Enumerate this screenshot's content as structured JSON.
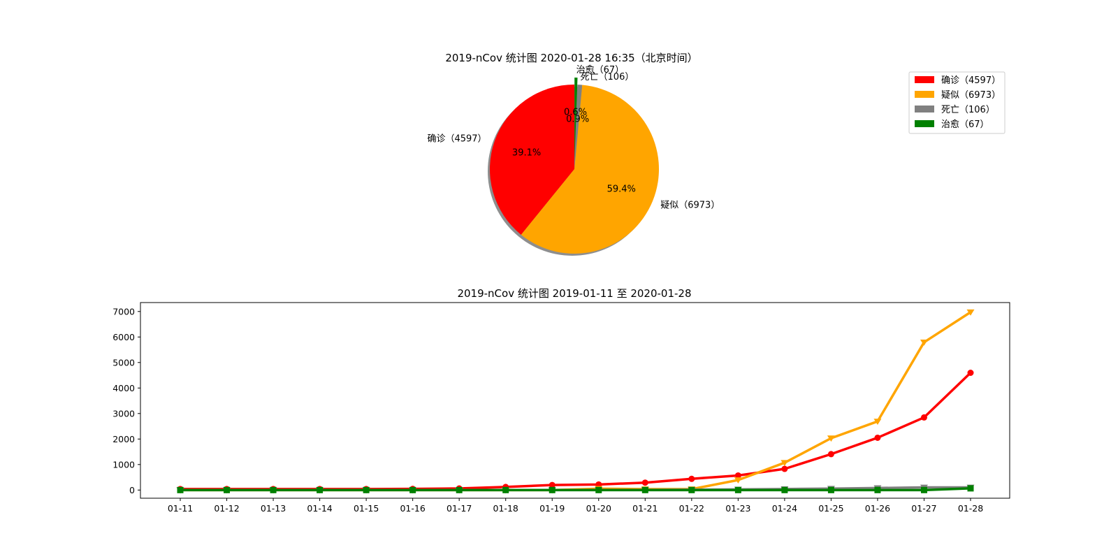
{
  "colors": {
    "confirmed": "#ff0000",
    "suspected": "#ffa500",
    "dead": "#808080",
    "cured": "#008000"
  },
  "chart_data": [
    {
      "type": "pie",
      "title": "2019-nCov 统计图 2020-01-28 16:35（北京时间）",
      "slices": [
        {
          "label": "确诊（4597）",
          "value": 4597,
          "pct_label": "39.1%",
          "color": "#ff0000"
        },
        {
          "label": "疑似（6973）",
          "value": 6973,
          "pct_label": "59.4%",
          "color": "#ffa500"
        },
        {
          "label": "死亡（106）",
          "value": 106,
          "pct_label": "0.9%",
          "color": "#808080"
        },
        {
          "label": "治愈（67）",
          "value": 67,
          "pct_label": "0.6%",
          "color": "#008000"
        }
      ],
      "start_angle_deg": 90,
      "explode": "cured slice",
      "shadow": true,
      "legend_position": "top-right",
      "legend": [
        "确诊（4597）",
        "疑似（6973）",
        "死亡（106）",
        "治愈（67）"
      ]
    },
    {
      "type": "line",
      "title": "2019-nCov 统计图 2019-01-11 至 2020-01-28",
      "categories": [
        "01-11",
        "01-12",
        "01-13",
        "01-14",
        "01-15",
        "01-16",
        "01-17",
        "01-18",
        "01-19",
        "01-20",
        "01-21",
        "01-22",
        "01-23",
        "01-24",
        "01-25",
        "01-26",
        "01-27",
        "01-28"
      ],
      "yticks": [
        "0",
        "1000",
        "2000",
        "3000",
        "4000",
        "5000",
        "6000",
        "7000"
      ],
      "ylim": [
        -320,
        7350
      ],
      "grid": false,
      "series": [
        {
          "key": "confirmed",
          "marker": "circle",
          "color": "#ff0000",
          "values": [
            41,
            41,
            41,
            41,
            41,
            45,
            62,
            121,
            198,
            218,
            291,
            440,
            571,
            830,
            1409,
            2051,
            2846,
            4597
          ]
        },
        {
          "key": "suspected",
          "marker": "triangle-down",
          "color": "#ffa500",
          "values": [
            0,
            0,
            0,
            0,
            0,
            0,
            0,
            0,
            0,
            54,
            37,
            37,
            393,
            1072,
            2032,
            2692,
            5794,
            6973
          ]
        },
        {
          "key": "dead",
          "marker": "triangle-down",
          "color": "#808080",
          "values": [
            1,
            1,
            1,
            1,
            2,
            2,
            2,
            3,
            3,
            6,
            6,
            17,
            25,
            41,
            56,
            80,
            106,
            106
          ]
        },
        {
          "key": "cured",
          "marker": "square",
          "color": "#008000",
          "values": [
            0,
            0,
            0,
            0,
            0,
            0,
            0,
            0,
            0,
            0,
            0,
            0,
            0,
            0,
            0,
            0,
            0,
            67
          ]
        }
      ]
    }
  ]
}
